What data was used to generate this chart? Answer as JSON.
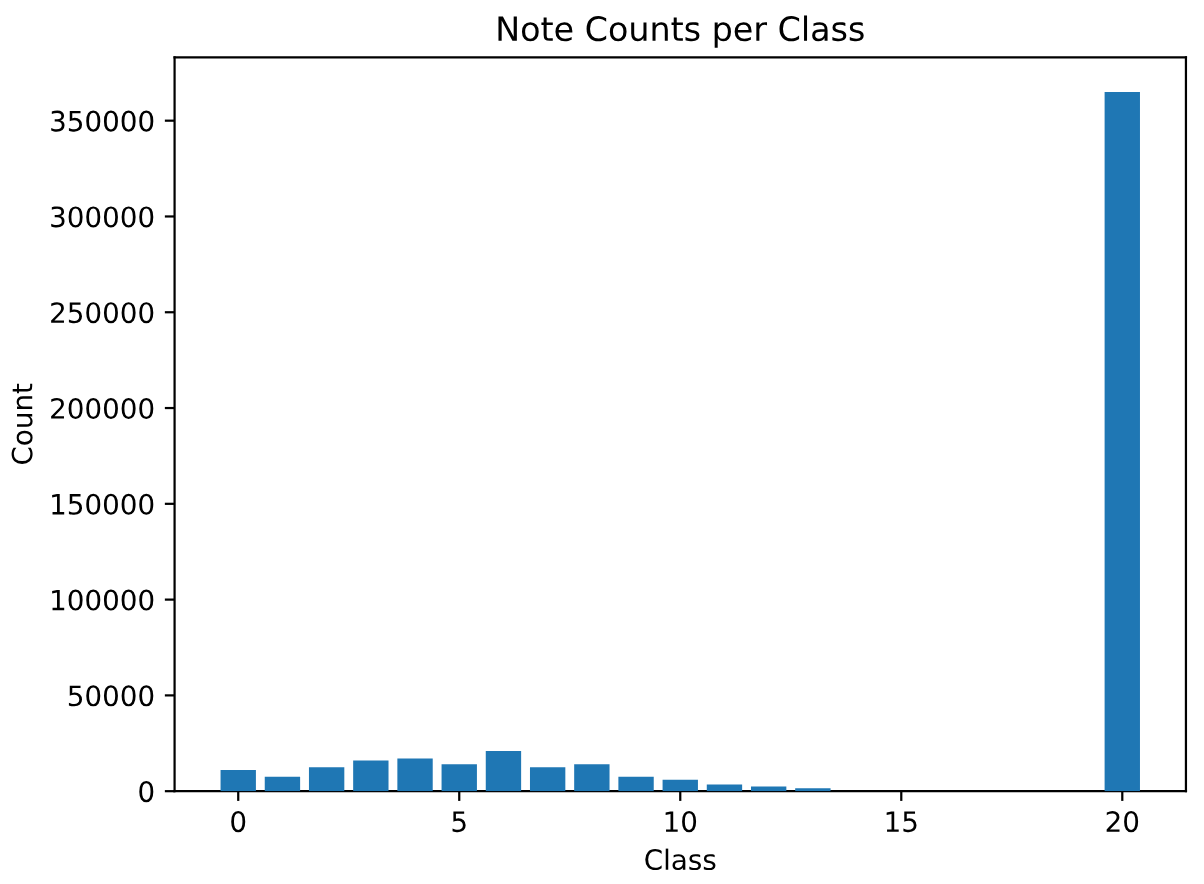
{
  "chart_data": {
    "type": "bar",
    "title": "Note Counts per Class",
    "xlabel": "Class",
    "ylabel": "Count",
    "x": [
      0,
      1,
      2,
      3,
      4,
      5,
      6,
      7,
      8,
      9,
      10,
      11,
      12,
      13,
      20
    ],
    "values": [
      11000,
      7500,
      12500,
      16000,
      17000,
      14000,
      21000,
      12500,
      14000,
      7500,
      6000,
      3500,
      2500,
      1500,
      365000
    ],
    "color": "#1f77b4",
    "xlim": [
      -1.44,
      21.44
    ],
    "xticks": [
      0,
      5,
      10,
      15,
      20
    ],
    "ylim": [
      0,
      383000
    ],
    "yticks": [
      0,
      50000,
      100000,
      150000,
      200000,
      250000,
      300000,
      350000
    ],
    "grid": false
  }
}
